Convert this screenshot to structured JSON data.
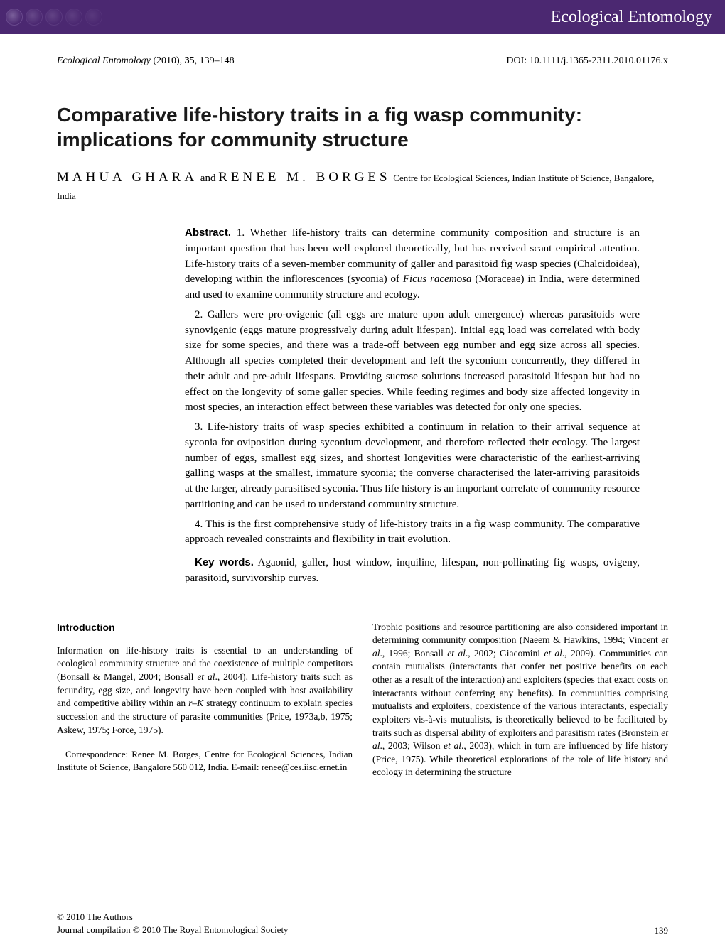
{
  "header": {
    "journal_name": "Ecological Entomology",
    "bar_color": "#4b2871",
    "text_color": "#ffffff"
  },
  "meta": {
    "journal_italic": "Ecological Entomology",
    "year": "(2010),",
    "volume": "35",
    "pages": "139–148",
    "doi": "DOI: 10.1111/j.1365-2311.2010.01176.x"
  },
  "title": "Comparative life-history traits in a fig wasp community: implications for community structure",
  "authors": {
    "name1": "MAHUA GHARA",
    "and": "and",
    "name2": "RENEE M. BORGES",
    "affiliation_prefix": " Centre for Ecological Sciences, Indian Institute of Science, Bangalore, India"
  },
  "abstract": {
    "label": "Abstract.",
    "p1_after_label": " 1. Whether life-history traits can determine community composition and structure is an important question that has been well explored theoretically, but has received scant empirical attention. Life-history traits of a seven-member community of galler and parasitoid fig wasp species (Chalcidoidea), developing within the inflorescences (syconia) of ",
    "p1_ital": "Ficus racemosa",
    "p1_tail": " (Moraceae) in India, were determined and used to examine community structure and ecology.",
    "p2": "2. Gallers were pro-ovigenic (all eggs are mature upon adult emergence) whereas parasitoids were synovigenic (eggs mature progressively during adult lifespan). Initial egg load was correlated with body size for some species, and there was a trade-off between egg number and egg size across all species. Although all species completed their development and left the syconium concurrently, they differed in their adult and pre-adult lifespans. Providing sucrose solutions increased parasitoid lifespan but had no effect on the longevity of some galler species. While feeding regimes and body size affected longevity in most species, an interaction effect between these variables was detected for only one species.",
    "p3": "3. Life-history traits of wasp species exhibited a continuum in relation to their arrival sequence at syconia for oviposition during syconium development, and therefore reflected their ecology. The largest number of eggs, smallest egg sizes, and shortest longevities were characteristic of the earliest-arriving galling wasps at the smallest, immature syconia; the converse characterised the later-arriving parasitoids at the larger, already parasitised syconia. Thus life history is an important correlate of community resource partitioning and can be used to understand community structure.",
    "p4": "4. This is the first comprehensive study of life-history traits in a fig wasp community. The comparative approach revealed constraints and flexibility in trait evolution.",
    "keywords_label": "Key words.",
    "keywords_text": " Agaonid, galler, host window, inquiline, lifespan, non-pollinating fig wasps, ovigeny, parasitoid, survivorship curves."
  },
  "intro": {
    "heading": "Introduction",
    "left_p1a": "Information on life-history traits is essential to an understanding of ecological community structure and the coexistence of multiple competitors (Bonsall & Mangel, 2004; Bonsall ",
    "left_p1b": "et al",
    "left_p1c": "., 2004). Life-history traits such as fecundity, egg size, and longevity have been coupled with host availability and competitive ability within an ",
    "left_p1d": "r–K",
    "left_p1e": " strategy continuum to explain species succession and the structure of parasite communities (Price, 1973a,b, 1975; Askew, 1975; Force, 1975).",
    "right_p1a": "Trophic positions and resource partitioning are also considered important in determining community composition (Naeem & Hawkins, 1994; Vincent ",
    "right_p1b": "et al",
    "right_p1c": "., 1996; Bonsall ",
    "right_p1d": "et al",
    "right_p1e": "., 2002; Giacomini ",
    "right_p1f": "et al",
    "right_p1g": "., 2009). Communities can contain mutualists (interactants that confer net positive benefits on each other as a result of the interaction) and exploiters (species that exact costs on interactants without conferring any benefits). In communities comprising mutualists and exploiters, coexistence of the various interactants, especially exploiters vis-",
    "right_p1h": "à",
    "right_p1i": "-vis mutualists, is theoretically believed to be facilitated by traits such as dispersal ability of exploiters and parasitism rates (Bronstein ",
    "right_p1j": "et al",
    "right_p1k": "., 2003; Wilson ",
    "right_p1l": "et al",
    "right_p1m": "., 2003), which in turn are influenced by life history (Price, 1975). While theoretical explorations of the role of life history and ecology in determining the structure"
  },
  "correspondence": "Correspondence: Renee M. Borges, Centre for Ecological Sciences, Indian Institute of Science, Bangalore 560 012, India. E-mail: renee@ces.iisc.ernet.in",
  "footer": {
    "line1": "© 2010 The Authors",
    "line2": "Journal compilation © 2010 The Royal Entomological Society",
    "page": "139"
  }
}
